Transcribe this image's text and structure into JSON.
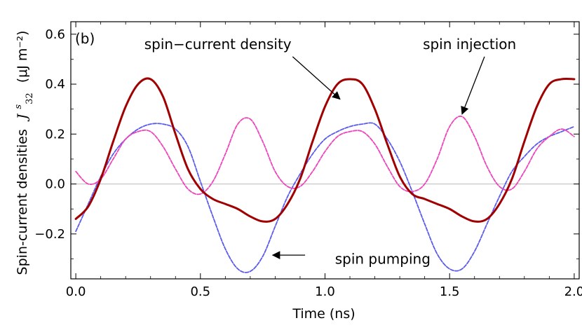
{
  "chart_data": {
    "type": "line",
    "panel_label": "(b)",
    "xlabel": "Time  (ns)",
    "ylabel": "Spin-current  densities",
    "ylabel_symbol": "J",
    "ylabel_symbol_sup": "s",
    "ylabel_symbol_sub": "32",
    "ylabel_unit": "(μJ m⁻²)",
    "xlim": [
      -0.02,
      2.02
    ],
    "ylim": [
      -0.38,
      0.65
    ],
    "xticks": [
      0.0,
      0.5,
      1.0,
      1.5,
      2.0
    ],
    "xtick_labels": [
      "0.0",
      "0.5",
      "1.0",
      "1.5",
      "2.0"
    ],
    "yticks": [
      -0.2,
      0.0,
      0.2,
      0.4,
      0.6
    ],
    "ytick_labels": [
      "−0.2",
      "0.0",
      "0.2",
      "0.4",
      "0.6"
    ],
    "zero_line": true,
    "grid": false,
    "series": [
      {
        "key": "density",
        "color": "#a00000",
        "style": "solid",
        "x": [
          0.0,
          0.05,
          0.1,
          0.15,
          0.2,
          0.25,
          0.3,
          0.35,
          0.4,
          0.45,
          0.5,
          0.55,
          0.6,
          0.65,
          0.7,
          0.75,
          0.8,
          0.85,
          0.9,
          0.95,
          1.0,
          1.05,
          1.1,
          1.15,
          1.2,
          1.25,
          1.3,
          1.35,
          1.4,
          1.45,
          1.5,
          1.55,
          1.6,
          1.65,
          1.7,
          1.75,
          1.8,
          1.85,
          1.9,
          1.95,
          2.0
        ],
        "values": [
          -0.14,
          -0.09,
          0.02,
          0.17,
          0.31,
          0.4,
          0.42,
          0.35,
          0.2,
          0.06,
          -0.02,
          -0.06,
          -0.08,
          -0.1,
          -0.13,
          -0.15,
          -0.14,
          -0.08,
          0.02,
          0.17,
          0.31,
          0.4,
          0.42,
          0.4,
          0.3,
          0.16,
          0.03,
          -0.04,
          -0.06,
          -0.08,
          -0.1,
          -0.13,
          -0.15,
          -0.14,
          -0.08,
          0.02,
          0.17,
          0.31,
          0.4,
          0.42,
          0.42
        ]
      },
      {
        "key": "pumping",
        "color": "#5a5aee",
        "style": "dashed",
        "x": [
          0.0,
          0.05,
          0.1,
          0.15,
          0.2,
          0.25,
          0.3,
          0.35,
          0.4,
          0.45,
          0.5,
          0.55,
          0.6,
          0.65,
          0.7,
          0.75,
          0.8,
          0.85,
          0.9,
          0.95,
          1.0,
          1.05,
          1.1,
          1.15,
          1.2,
          1.25,
          1.3,
          1.35,
          1.4,
          1.45,
          1.5,
          1.55,
          1.6,
          1.65,
          1.7,
          1.75,
          1.8,
          1.85,
          1.9,
          1.95,
          2.0
        ],
        "values": [
          -0.19,
          -0.08,
          0.03,
          0.12,
          0.18,
          0.22,
          0.24,
          0.24,
          0.22,
          0.15,
          0.01,
          -0.13,
          -0.26,
          -0.34,
          -0.35,
          -0.29,
          -0.17,
          -0.05,
          0.04,
          0.12,
          0.18,
          0.21,
          0.23,
          0.24,
          0.24,
          0.18,
          0.09,
          -0.03,
          -0.16,
          -0.28,
          -0.34,
          -0.34,
          -0.27,
          -0.16,
          -0.05,
          0.05,
          0.11,
          0.16,
          0.19,
          0.21,
          0.23
        ]
      },
      {
        "key": "injection",
        "color": "#ee44bb",
        "style": "dashed",
        "x": [
          0.0,
          0.05,
          0.1,
          0.15,
          0.2,
          0.25,
          0.3,
          0.35,
          0.4,
          0.45,
          0.5,
          0.55,
          0.6,
          0.65,
          0.7,
          0.75,
          0.8,
          0.85,
          0.9,
          0.95,
          1.0,
          1.05,
          1.1,
          1.15,
          1.2,
          1.25,
          1.3,
          1.35,
          1.4,
          1.45,
          1.5,
          1.55,
          1.6,
          1.65,
          1.7,
          1.75,
          1.8,
          1.85,
          1.9,
          1.95,
          2.0
        ],
        "values": [
          0.05,
          0.0,
          0.02,
          0.1,
          0.18,
          0.21,
          0.21,
          0.15,
          0.06,
          -0.02,
          -0.04,
          0.01,
          0.12,
          0.24,
          0.26,
          0.17,
          0.05,
          -0.01,
          -0.01,
          0.05,
          0.13,
          0.19,
          0.21,
          0.21,
          0.16,
          0.07,
          -0.01,
          -0.03,
          0.0,
          0.1,
          0.23,
          0.27,
          0.19,
          0.07,
          -0.01,
          -0.02,
          0.05,
          0.14,
          0.19,
          0.22,
          0.19
        ]
      }
    ],
    "annotations": [
      {
        "text": "spin−current density",
        "label_x": 0.57,
        "label_y": 0.56,
        "arrow_tail_x": 0.87,
        "arrow_tail_y": 0.51,
        "arrow_head_x": 1.06,
        "arrow_head_y": 0.34
      },
      {
        "text": "spin injection",
        "label_x": 1.58,
        "label_y": 0.56,
        "arrow_tail_x": 1.64,
        "arrow_tail_y": 0.51,
        "arrow_head_x": 1.55,
        "arrow_head_y": 0.28
      },
      {
        "text": "spin pumping",
        "label_x": 1.04,
        "label_y": -0.3,
        "arrow_tail_x": 0.92,
        "arrow_tail_y": -0.285,
        "arrow_head_x": 0.79,
        "arrow_head_y": -0.285
      }
    ]
  }
}
